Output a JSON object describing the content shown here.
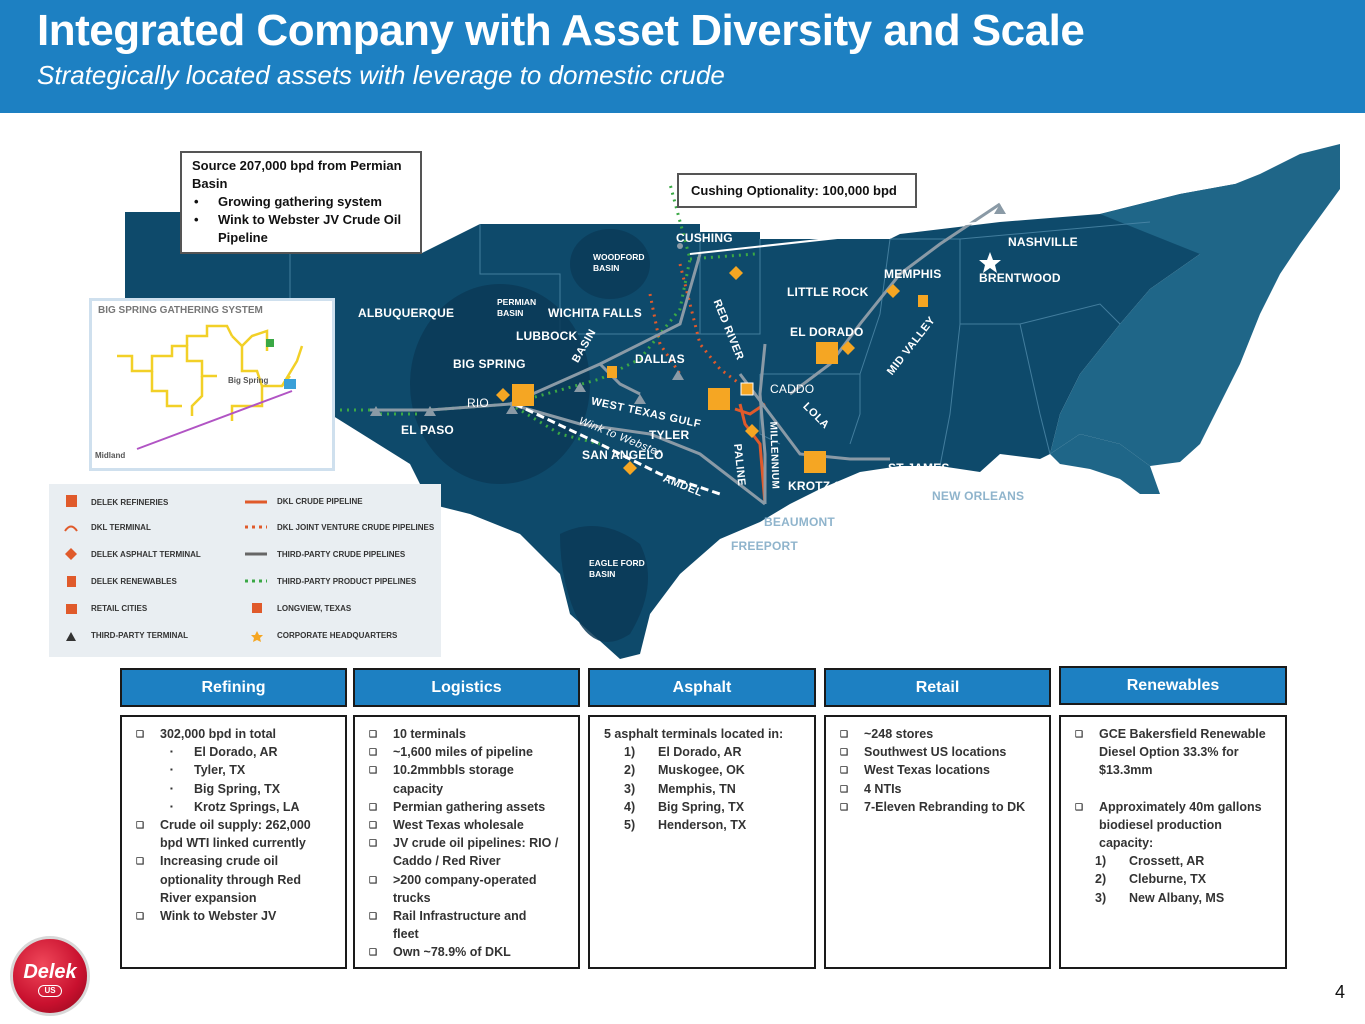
{
  "header": {
    "title": "Integrated Company with Asset Diversity and Scale",
    "subtitle": "Strategically located assets with leverage to domestic crude"
  },
  "map": {
    "callout_permian": {
      "text": "Source 207,000 bpd from Permian Basin",
      "bullets": [
        "Growing gathering system",
        "Wink to Webster JV Crude Oil Pipeline"
      ]
    },
    "callout_cushing": "Cushing  Optionality:  100,000 bpd",
    "cities": {
      "albuquerque": "ALBUQUERQUE",
      "lubbock": "LUBBOCK",
      "wichita_falls": "WICHITA FALLS",
      "dallas": "DALLAS",
      "big_spring": "BIG SPRING",
      "rio": "RIO",
      "el_paso": "EL PASO",
      "san_angelo": "SAN ANGELO",
      "tyler": "TYLER",
      "cushing": "CUSHING",
      "little_rock": "LITTLE ROCK",
      "el_dorado": "EL DORADO",
      "memphis": "MEMPHIS",
      "nashville": "NASHVILLE",
      "brentwood": "BRENTWOOD",
      "caddo": "CADDO",
      "st_james": "ST JAMES",
      "krotz_springs": "KROTZ SPRINGS",
      "new_orleans": "NEW ORLEANS",
      "beaumont": "BEAUMONT",
      "freeport": "FREEPORT"
    },
    "basins": {
      "woodford": [
        "WOODFORD",
        "BASIN"
      ],
      "permian": [
        "PERMIAN",
        "BASIN"
      ],
      "eagle_ford": [
        "EAGLE FORD",
        "BASIN"
      ]
    },
    "pipelines": {
      "basin": "BASIN",
      "red_river": "RED RIVER",
      "west_texas_gulf": "WEST TEXAS GULF",
      "wink_to_webster": "Wink to Webster",
      "amdel": "AMDEL",
      "paline": "PALINE",
      "millennium": "MILLENNIUM",
      "lola": "LOLA",
      "mid_valley": "MID VALLEY"
    },
    "inset": {
      "title": "BIG SPRING GATHERING SYSTEM",
      "big_spring": "Big Spring",
      "midland": "Midland"
    },
    "legend": {
      "items": [
        "DELEK REFINERIES",
        "DKL TERMINAL",
        "DELEK ASPHALT TERMINAL",
        "DELEK RENEWABLES",
        "RETAIL CITIES",
        "THIRD-PARTY TERMINAL",
        "DKL CRUDE PIPELINE",
        "DKL JOINT VENTURE CRUDE PIPELINES",
        "THIRD-PARTY CRUDE PIPELINES",
        "THIRD-PARTY PRODUCT PIPELINES",
        "LONGVIEW, TEXAS",
        "CORPORATE HEADQUARTERS"
      ]
    },
    "colors": {
      "land": "#0e4a6b",
      "land_light": "#195d80",
      "basin": "#0b3a57",
      "accent": "#f5a623",
      "pipeline_dkl": "#e05a2b",
      "pipeline_thirdparty": "#7a8a96",
      "pipeline_product": "#3aa845"
    }
  },
  "segments": {
    "refining": {
      "header": "Refining",
      "rows": [
        {
          "t": "b1",
          "v": "302,000 bpd in total"
        },
        {
          "t": "b2",
          "v": "El Dorado, AR"
        },
        {
          "t": "b2",
          "v": "Tyler, TX"
        },
        {
          "t": "b2",
          "v": "Big Spring, TX"
        },
        {
          "t": "b2",
          "v": "Krotz Springs, LA"
        },
        {
          "t": "b1",
          "v": "Crude oil supply: 262,000"
        },
        {
          "t": "cont",
          "v": "bpd WTI linked currently"
        },
        {
          "t": "b1",
          "v": "Increasing crude oil"
        },
        {
          "t": "cont",
          "v": "optionality  through Red"
        },
        {
          "t": "cont",
          "v": "River expansion"
        },
        {
          "t": "b1",
          "v": "Wink to Webster JV"
        }
      ]
    },
    "logistics": {
      "header": "Logistics",
      "rows": [
        {
          "t": "b1",
          "v": "10 terminals"
        },
        {
          "t": "b1",
          "v": "~1,600 miles of pipeline"
        },
        {
          "t": "b1",
          "v": "10.2mmbbls storage"
        },
        {
          "t": "cont",
          "v": "capacity"
        },
        {
          "t": "b1",
          "v": "Permian gathering assets"
        },
        {
          "t": "b1",
          "v": "West Texas wholesale"
        },
        {
          "t": "b1",
          "v": "JV crude oil pipelines:  RIO /"
        },
        {
          "t": "cont",
          "v": "Caddo / Red River"
        },
        {
          "t": "b1",
          "v": ">200 company-operated"
        },
        {
          "t": "cont",
          "v": "trucks"
        },
        {
          "t": "b1",
          "v": "Rail Infrastructure and"
        },
        {
          "t": "cont",
          "v": "fleet"
        },
        {
          "t": "b1",
          "v": "Own ~78.9%  of DKL"
        }
      ]
    },
    "asphalt": {
      "header": "Asphalt",
      "rows": [
        {
          "t": "plain",
          "v": "5 asphalt  terminals  located  in:"
        },
        {
          "t": "num",
          "n": "1)",
          "v": "El Dorado, AR"
        },
        {
          "t": "num",
          "n": "2)",
          "v": "Muskogee, OK"
        },
        {
          "t": "num",
          "n": "3)",
          "v": "Memphis,  TN"
        },
        {
          "t": "num",
          "n": "4)",
          "v": "Big Spring, TX"
        },
        {
          "t": "num",
          "n": "5)",
          "v": "Henderson,  TX"
        }
      ]
    },
    "retail": {
      "header": "Retail",
      "rows": [
        {
          "t": "b1",
          "v": "~248 stores"
        },
        {
          "t": "b1",
          "v": "Southwest  US locations"
        },
        {
          "t": "b1",
          "v": "West Texas locations"
        },
        {
          "t": "b1",
          "v": "4 NTIs"
        },
        {
          "t": "b1",
          "v": "7-Eleven Rebranding to DK"
        }
      ]
    },
    "renewables": {
      "header": "Renewables",
      "rows": [
        {
          "t": "b1",
          "v": "GCE Bakersfield Renewable"
        },
        {
          "t": "cont",
          "v": "Diesel Option  33.3% for"
        },
        {
          "t": "cont",
          "v": "$13.3mm"
        },
        {
          "t": "gap",
          "v": ""
        },
        {
          "t": "b1",
          "v": "Approximately  40m gallons"
        },
        {
          "t": "cont",
          "v": "biodiesel  production"
        },
        {
          "t": "cont",
          "v": "capacity:"
        },
        {
          "t": "num",
          "n": "1)",
          "v": "Crossett,  AR"
        },
        {
          "t": "num",
          "n": "2)",
          "v": "Cleburne,  TX"
        },
        {
          "t": "num",
          "n": "3)",
          "v": "New Albany,  MS"
        }
      ]
    }
  },
  "logo": {
    "text": "Delek",
    "sub": "US"
  },
  "page_number": "4"
}
